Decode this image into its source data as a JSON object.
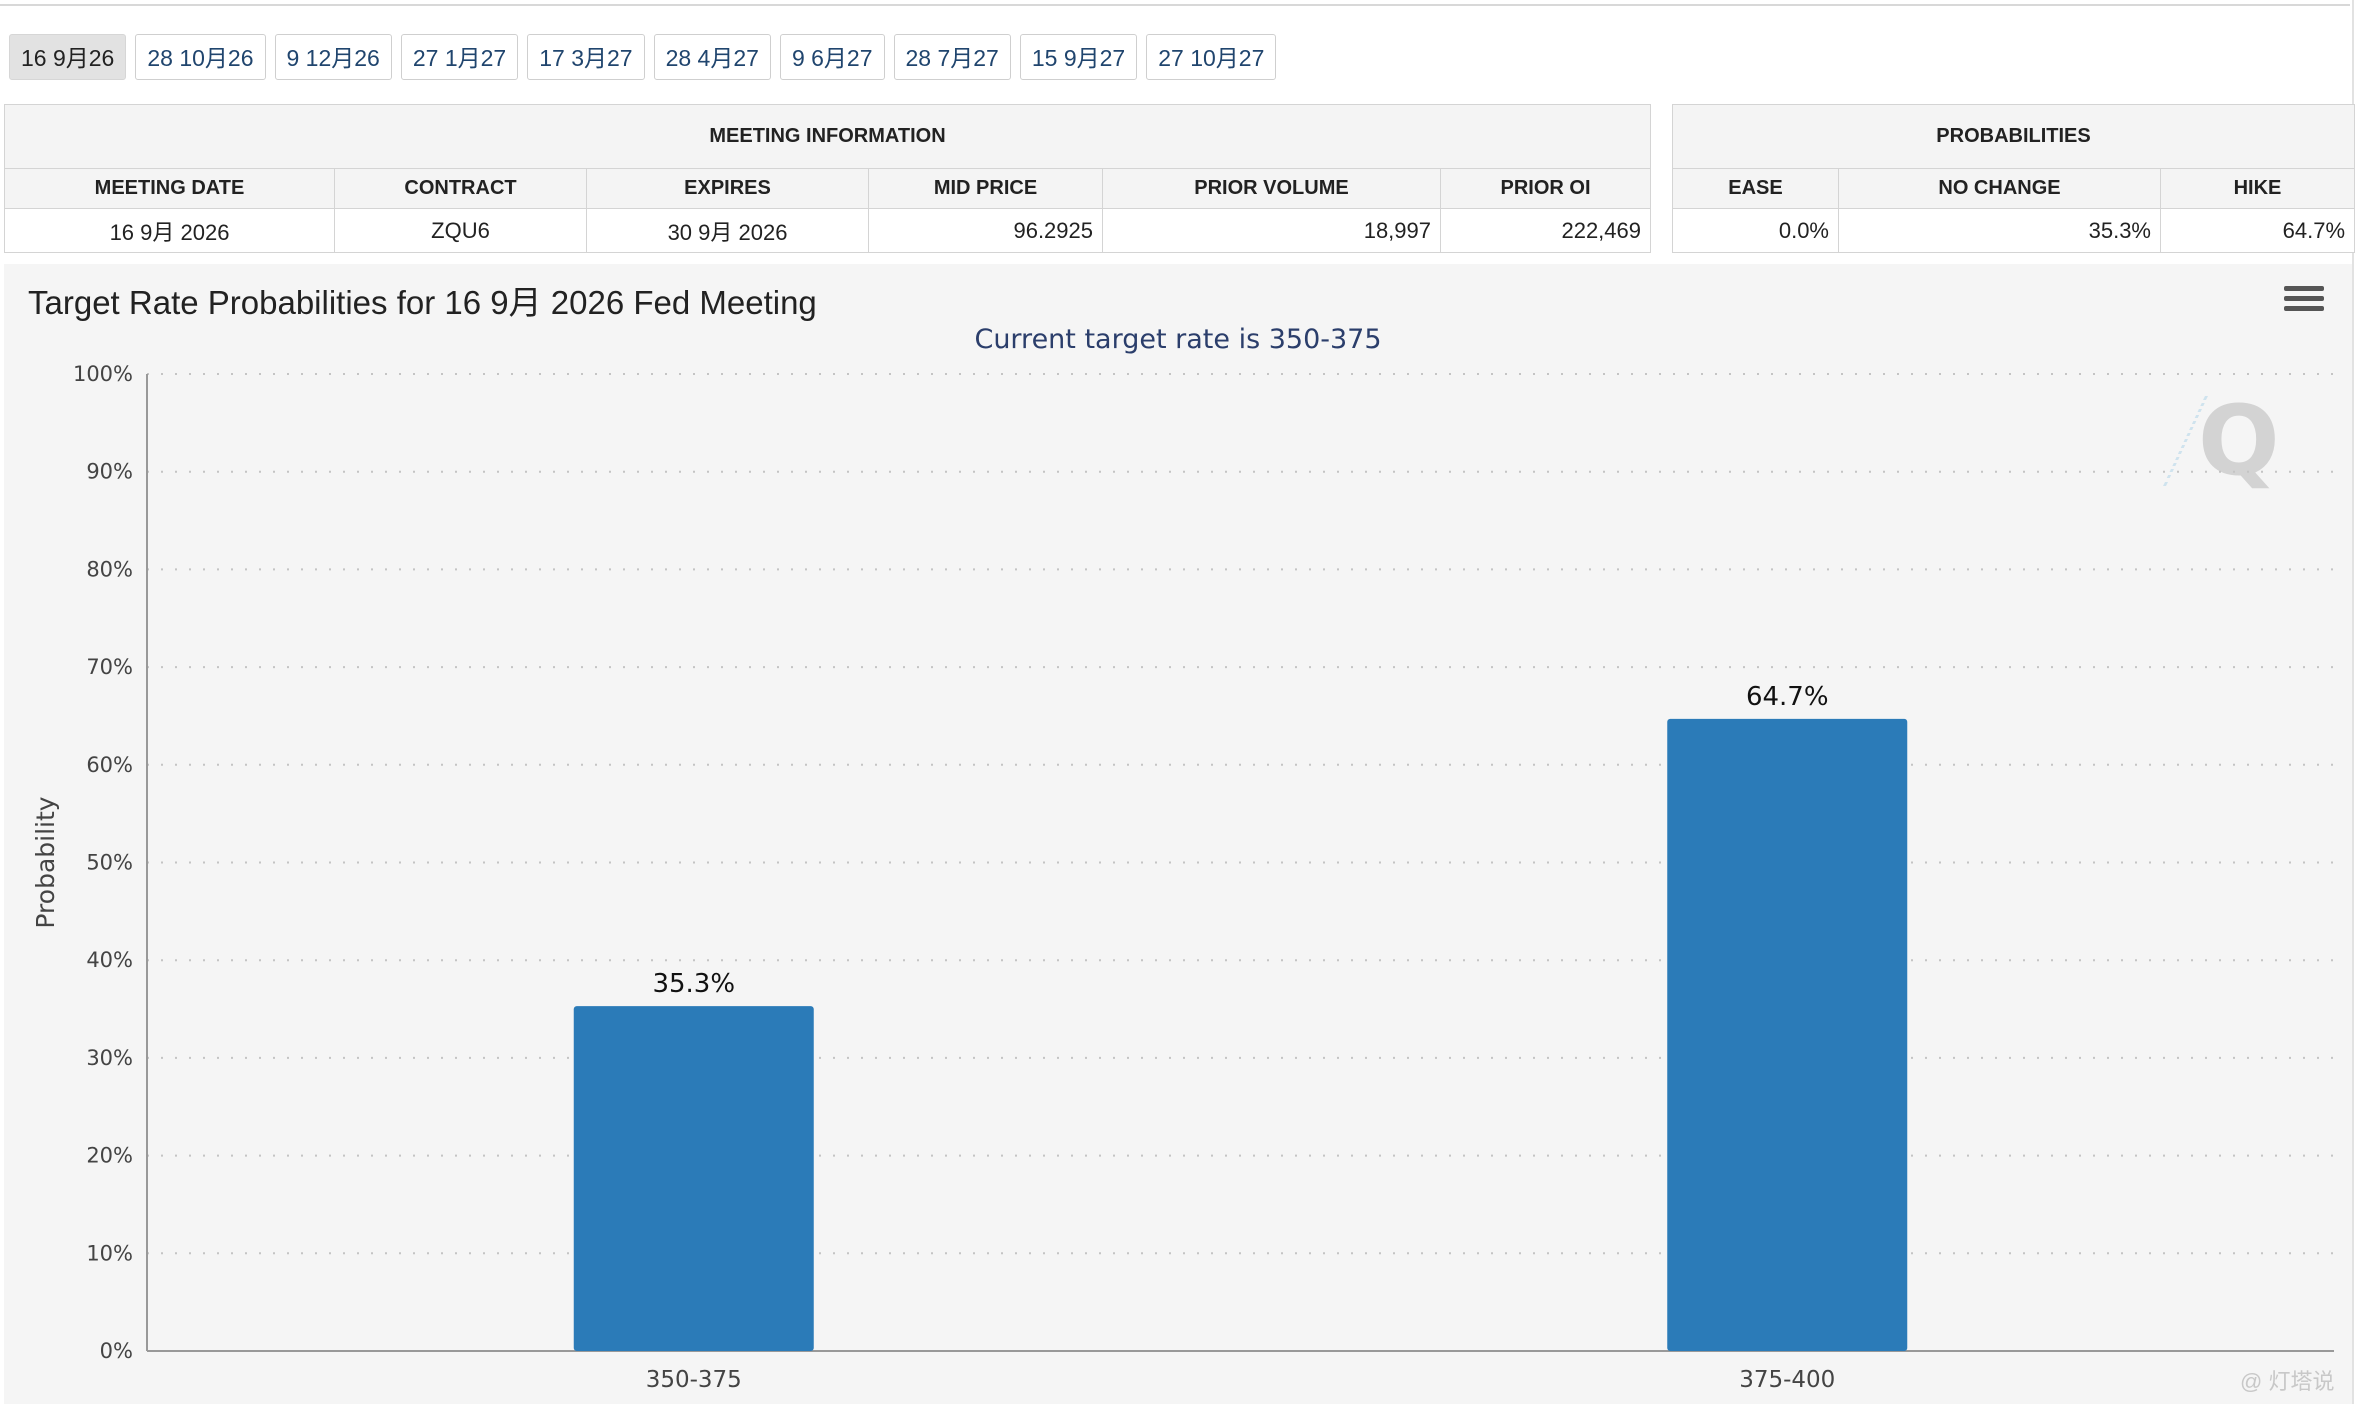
{
  "tabs": [
    "16 9月26",
    "28 10月26",
    "9 12月26",
    "27 1月27",
    "17 3月27",
    "28 4月27",
    "9 6月27",
    "28 7月27",
    "15 9月27",
    "27 10月27"
  ],
  "active_tab": 0,
  "meeting_info": {
    "title": "MEETING INFORMATION",
    "headers": {
      "meeting_date": "MEETING DATE",
      "contract": "CONTRACT",
      "expires": "EXPIRES",
      "mid_price": "MID PRICE",
      "prior_volume": "PRIOR VOLUME",
      "prior_oi": "PRIOR OI"
    },
    "row": {
      "meeting_date": "16 9月 2026",
      "contract": "ZQU6",
      "expires": "30 9月 2026",
      "mid_price": "96.2925",
      "prior_volume": "18,997",
      "prior_oi": "222,469"
    }
  },
  "probabilities": {
    "title": "PROBABILITIES",
    "headers": {
      "ease": "EASE",
      "no_change": "NO CHANGE",
      "hike": "HIKE"
    },
    "row": {
      "ease": "0.0%",
      "no_change": "35.3%",
      "hike": "64.7%"
    }
  },
  "chart": {
    "title": "Target Rate Probabilities for 16 9月 2026 Fed Meeting",
    "subtitle": "Current target rate is 350-375",
    "menu_icon": "hamburger-menu-icon",
    "bar_color": "#2b7bb8"
  },
  "chart_data": {
    "type": "bar",
    "categories": [
      "350-375",
      "375-400"
    ],
    "values": [
      35.3,
      64.7
    ],
    "value_labels": [
      "35.3%",
      "64.7%"
    ],
    "title": "Target Rate Probabilities for 16 9月 2026 Fed Meeting",
    "subtitle": "Current target rate is 350-375",
    "xlabel": "",
    "ylabel": "Probability",
    "ylim": [
      0,
      100
    ],
    "yticks": [
      "0%",
      "10%",
      "20%",
      "30%",
      "40%",
      "50%",
      "60%",
      "70%",
      "80%",
      "90%",
      "100%"
    ],
    "grid": true,
    "legend": "none"
  },
  "footer_watermark": "@ 灯塔说"
}
